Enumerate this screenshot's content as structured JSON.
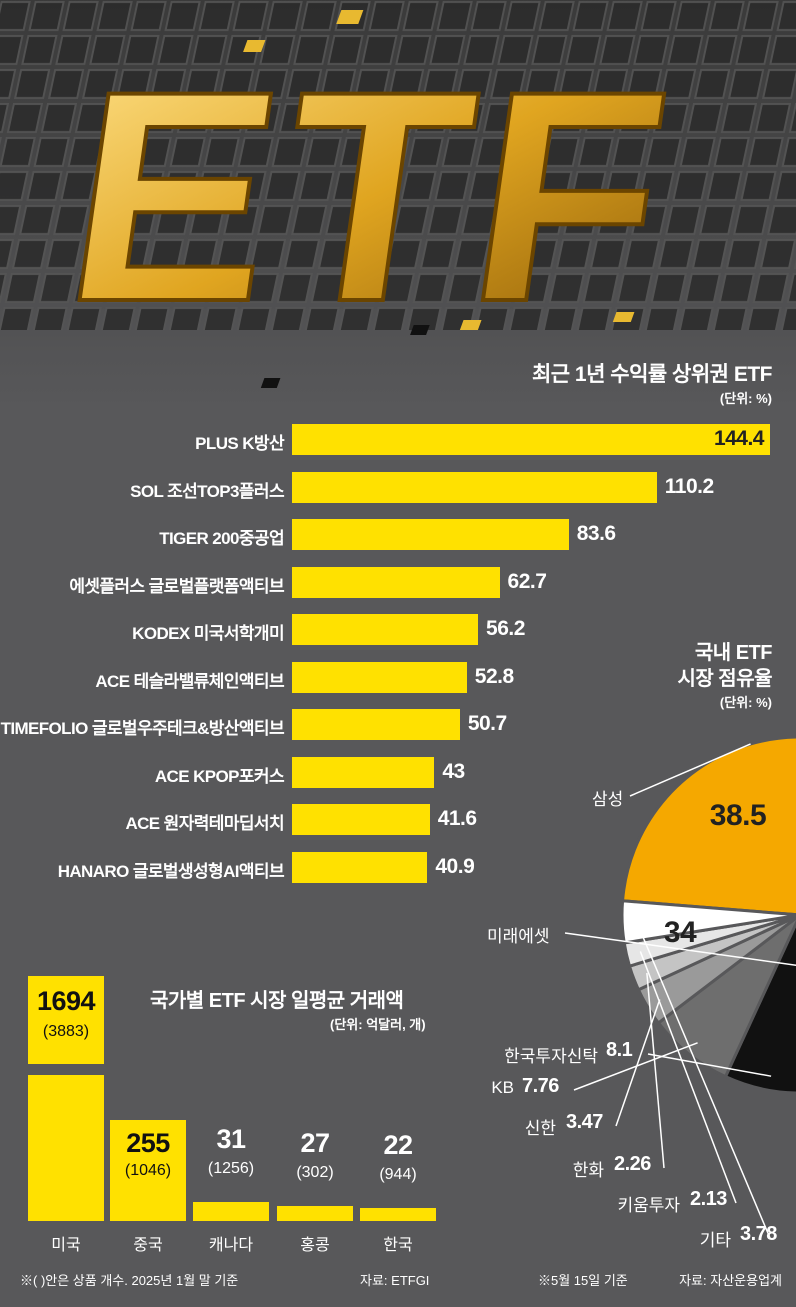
{
  "colors": {
    "background": "#58585a",
    "bar_yellow": "#ffe100",
    "pie_orange": "#f5a800",
    "pie_black": "#111111",
    "text_white": "#ffffff"
  },
  "hero": {
    "label": "ETF"
  },
  "chart_data": [
    {
      "type": "bar",
      "orientation": "horizontal",
      "title": "최근 1년 수익률 상위권 ETF",
      "unit": "(단위: %)",
      "categories": [
        "PLUS K방산",
        "SOL 조선TOP3플러스",
        "TIGER 200중공업",
        "에셋플러스 글로벌플랫폼액티브",
        "KODEX 미국서학개미",
        "ACE 테슬라밸류체인액티브",
        "TIMEFOLIO 글로벌우주테크&방산액티브",
        "ACE KPOP포커스",
        "ACE 원자력테마딥서치",
        "HANARO 글로벌생성형AI액티브"
      ],
      "values": [
        144.4,
        110.2,
        83.6,
        62.7,
        56.2,
        52.8,
        50.7,
        43,
        41.6,
        40.9
      ],
      "value_labels": [
        "144.4",
        "110.2",
        "83.6",
        "62.7",
        "56.2",
        "52.8",
        "50.7",
        "43",
        "41.6",
        "40.9"
      ],
      "xlim": [
        0,
        144.4
      ]
    },
    {
      "type": "pie",
      "title_line1": "국내 ETF",
      "title_line2": "시장 점유율",
      "unit": "(단위: %)",
      "note": "※5월 15일 기준",
      "source": "자료: 자산운용업계",
      "slices": [
        {
          "name": "삼성",
          "value": 38.5,
          "label": "38.5"
        },
        {
          "name": "미래에셋",
          "value": 34,
          "label": "34"
        },
        {
          "name": "한국투자신탁",
          "value": 8.1,
          "label": "8.1"
        },
        {
          "name": "KB",
          "value": 7.76,
          "label": "7.76"
        },
        {
          "name": "신한",
          "value": 3.47,
          "label": "3.47"
        },
        {
          "name": "한화",
          "value": 2.26,
          "label": "2.26"
        },
        {
          "name": "키움투자",
          "value": 2.13,
          "label": "2.13"
        },
        {
          "name": "기타",
          "value": 3.78,
          "label": "3.78"
        }
      ]
    },
    {
      "type": "bar",
      "orientation": "vertical",
      "title": "국가별 ETF 시장 일평균 거래액",
      "unit": "(단위: 억달러, 개)",
      "note": "※(   )안은 상품 개수. 2025년 1월 말 기준",
      "source": "자료: ETFGI",
      "categories": [
        "미국",
        "중국",
        "캐나다",
        "홍콩",
        "한국"
      ],
      "values": [
        1694,
        255,
        31,
        27,
        22
      ],
      "value_labels": [
        "1694",
        "255",
        "31",
        "27",
        "22"
      ],
      "product_counts": [
        "(3883)",
        "(1046)",
        "(1256)",
        "(302)",
        "(944)"
      ]
    }
  ]
}
